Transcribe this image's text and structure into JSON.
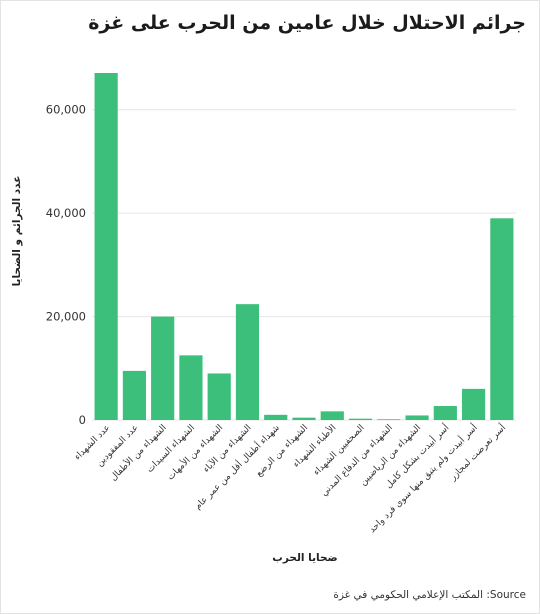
{
  "title": "جرائم الاحتلال خلال عامين من الحرب على غزة",
  "source_label": "المكتب الإعلامي الحكومي في غزة :Source",
  "colors": {
    "bar": "#3bbf7a",
    "grid": "#e6e6e6",
    "text": "#333333"
  },
  "chart_data": {
    "type": "bar",
    "title": "جرائم الاحتلال خلال عامين من الحرب على غزة",
    "xlabel": "ضحايا الحرب",
    "ylabel": "عدد الجرائم و الضحايا",
    "ylim": [
      0,
      70000
    ],
    "yticks": [
      0,
      20000,
      40000,
      60000
    ],
    "ytick_labels": [
      "0",
      "20,000",
      "40,000",
      "60,000"
    ],
    "grid": true,
    "categories": [
      "عدد الشهداء",
      "عدد المفقودين",
      "الشهداء من الأطفال",
      "الشهداء السيدات",
      "الشهداء من الأمهات",
      "الشهداء من الآباء",
      "شهداء أطفال أقل من عمر عام",
      "الشهداء من الرضع",
      "الأطباء الشهداء",
      "الصحفيين الشهداء",
      "الشهداء من الدفاع المدني",
      "الشهداء من الرياضيين",
      "أسر أبيدت بشكل كامل",
      "أسر أبيدت ولم يتبق منها سوى فرد واحد",
      "أسر تعرضت لمجازر"
    ],
    "values": [
      67100,
      9500,
      20000,
      12500,
      9000,
      22400,
      1000,
      450,
      1670,
      254,
      140,
      880,
      2700,
      6020,
      39000
    ]
  }
}
